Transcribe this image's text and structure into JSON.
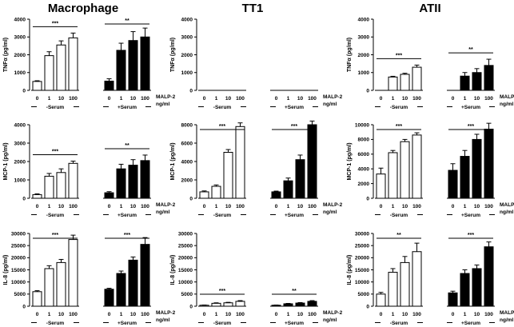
{
  "figure": {
    "columns": [
      "Macrophage",
      "TT1",
      "ATII"
    ],
    "stimulus_label": "MALP-2",
    "unit_label": "ng/ml",
    "group_labels": [
      "-Serum",
      "+Serum"
    ]
  },
  "chart_data": [
    {
      "type": "bar",
      "column": "Macrophage",
      "row": 0,
      "ylabel": "TNFα (pg/ml)",
      "ylim": [
        0,
        4000
      ],
      "yticks": [
        "0",
        "1000",
        "2000",
        "3000",
        "4000"
      ],
      "categories": [
        "0",
        "1",
        "10",
        "100"
      ],
      "series": [
        {
          "name": "-Serum",
          "fill": "#ffffff",
          "values": [
            500,
            1950,
            2550,
            2950
          ],
          "errors": [
            40,
            220,
            230,
            270
          ]
        },
        {
          "name": "+Serum",
          "fill": "#000000",
          "values": [
            520,
            2250,
            2800,
            3000
          ],
          "errors": [
            130,
            400,
            500,
            500
          ]
        }
      ],
      "annotations": [
        {
          "group": 0,
          "text": "***"
        },
        {
          "group": 1,
          "text": "**"
        }
      ]
    },
    {
      "type": "bar",
      "column": "Macrophage",
      "row": 1,
      "ylabel": "MCP-1 (pg/ml)",
      "ylim": [
        0,
        4000
      ],
      "yticks": [
        "0",
        "1000",
        "2000",
        "3000",
        "4000"
      ],
      "categories": [
        "0",
        "1",
        "10",
        "100"
      ],
      "series": [
        {
          "name": "-Serum",
          "fill": "#ffffff",
          "values": [
            200,
            1200,
            1400,
            1900
          ],
          "errors": [
            40,
            150,
            200,
            120
          ]
        },
        {
          "name": "+Serum",
          "fill": "#000000",
          "values": [
            300,
            1600,
            1800,
            2050
          ],
          "errors": [
            60,
            250,
            300,
            300
          ]
        }
      ],
      "annotations": [
        {
          "group": 0,
          "text": "***"
        },
        {
          "group": 1,
          "text": "**"
        }
      ]
    },
    {
      "type": "bar",
      "column": "Macrophage",
      "row": 2,
      "ylabel": "IL-8 (pg/ml)",
      "ylim": [
        0,
        30000
      ],
      "yticks": [
        "0",
        "5000",
        "10000",
        "15000",
        "20000",
        "25000",
        "30000"
      ],
      "categories": [
        "0",
        "1",
        "10",
        "100"
      ],
      "series": [
        {
          "name": "-Serum",
          "fill": "#ffffff",
          "values": [
            6000,
            15500,
            18000,
            27500
          ],
          "errors": [
            400,
            1200,
            1300,
            1800
          ]
        },
        {
          "name": "+Serum",
          "fill": "#000000",
          "values": [
            7000,
            13500,
            19000,
            25500
          ],
          "errors": [
            400,
            1000,
            1300,
            2800
          ]
        }
      ],
      "annotations": [
        {
          "group": 0,
          "text": "***"
        },
        {
          "group": 1,
          "text": "***"
        }
      ]
    },
    {
      "type": "bar",
      "column": "TT1",
      "row": 0,
      "ylabel": "TNFα (pg/ml)",
      "ylim": [
        0,
        4000
      ],
      "yticks": [
        "0",
        "1000",
        "2000",
        "3000",
        "4000"
      ],
      "categories": [
        "0",
        "1",
        "10",
        "100"
      ],
      "series": [
        {
          "name": "-Serum",
          "fill": "#ffffff",
          "values": [
            0,
            0,
            0,
            0
          ],
          "errors": [
            0,
            0,
            0,
            0
          ]
        },
        {
          "name": "+Serum",
          "fill": "#000000",
          "values": [
            0,
            0,
            0,
            0
          ],
          "errors": [
            0,
            0,
            0,
            0
          ]
        }
      ],
      "annotations": []
    },
    {
      "type": "bar",
      "column": "TT1",
      "row": 1,
      "ylabel": "MCP-1 (pg/ml)",
      "ylim": [
        0,
        8000
      ],
      "yticks": [
        "0",
        "2000",
        "4000",
        "6000",
        "8000"
      ],
      "categories": [
        "0",
        "1",
        "10",
        "100"
      ],
      "series": [
        {
          "name": "-Serum",
          "fill": "#ffffff",
          "values": [
            700,
            1300,
            5000,
            7800
          ],
          "errors": [
            100,
            150,
            300,
            400
          ]
        },
        {
          "name": "+Serum",
          "fill": "#000000",
          "values": [
            700,
            1900,
            4200,
            8000
          ],
          "errors": [
            80,
            300,
            500,
            400
          ]
        }
      ],
      "annotations": [
        {
          "group": 0,
          "text": "***"
        },
        {
          "group": 1,
          "text": "***"
        }
      ]
    },
    {
      "type": "bar",
      "column": "TT1",
      "row": 2,
      "ylabel": "IL-8 (pg/ml)",
      "ylim": [
        0,
        30000
      ],
      "yticks": [
        "0",
        "5000",
        "10000",
        "15000",
        "20000",
        "25000",
        "30000"
      ],
      "categories": [
        "0",
        "1",
        "10",
        "100"
      ],
      "series": [
        {
          "name": "-Serum",
          "fill": "#ffffff",
          "values": [
            400,
            1200,
            1400,
            2000
          ],
          "errors": [
            100,
            200,
            200,
            300
          ]
        },
        {
          "name": "+Serum",
          "fill": "#000000",
          "values": [
            400,
            1000,
            1300,
            2000
          ],
          "errors": [
            100,
            150,
            200,
            300
          ]
        }
      ],
      "annotations": [
        {
          "group": 0,
          "text": "***"
        },
        {
          "group": 1,
          "text": "**"
        }
      ]
    },
    {
      "type": "bar",
      "column": "ATII",
      "row": 0,
      "ylabel": "TNFα (pg/ml)",
      "ylim": [
        0,
        4000
      ],
      "yticks": [
        "0",
        "1000",
        "2000",
        "3000",
        "4000"
      ],
      "categories": [
        "0",
        "1",
        "10",
        "100"
      ],
      "series": [
        {
          "name": "-Serum",
          "fill": "#ffffff",
          "values": [
            0,
            750,
            900,
            1300
          ],
          "errors": [
            0,
            40,
            60,
            120
          ]
        },
        {
          "name": "+Serum",
          "fill": "#000000",
          "values": [
            0,
            800,
            1000,
            1400
          ],
          "errors": [
            0,
            200,
            220,
            350
          ]
        }
      ],
      "annotations": [
        {
          "group": 0,
          "text": "***"
        },
        {
          "group": 1,
          "text": "**"
        }
      ]
    },
    {
      "type": "bar",
      "column": "ATII",
      "row": 1,
      "ylabel": "MCP-1 (pg/ml)",
      "ylim": [
        0,
        10000
      ],
      "yticks": [
        "0",
        "2000",
        "4000",
        "6000",
        "8000",
        "10000"
      ],
      "categories": [
        "0",
        "1",
        "10",
        "100"
      ],
      "series": [
        {
          "name": "-Serum",
          "fill": "#ffffff",
          "values": [
            3300,
            6200,
            7700,
            8600
          ],
          "errors": [
            800,
            300,
            300,
            300
          ]
        },
        {
          "name": "+Serum",
          "fill": "#000000",
          "values": [
            3800,
            5700,
            8000,
            9400
          ],
          "errors": [
            900,
            800,
            700,
            800
          ]
        }
      ],
      "annotations": [
        {
          "group": 0,
          "text": "***"
        },
        {
          "group": 1,
          "text": "***"
        }
      ]
    },
    {
      "type": "bar",
      "column": "ATII",
      "row": 2,
      "ylabel": "IL-8 (pg/ml)",
      "ylim": [
        0,
        30000
      ],
      "yticks": [
        "0",
        "5000",
        "10000",
        "15000",
        "20000",
        "25000",
        "30000"
      ],
      "categories": [
        "0",
        "1",
        "10",
        "100"
      ],
      "series": [
        {
          "name": "-Serum",
          "fill": "#ffffff",
          "values": [
            5000,
            14000,
            18000,
            22500
          ],
          "errors": [
            700,
            1500,
            2500,
            3500
          ]
        },
        {
          "name": "+Serum",
          "fill": "#000000",
          "values": [
            5500,
            13500,
            15500,
            24500
          ],
          "errors": [
            700,
            1500,
            1500,
            2000
          ]
        }
      ],
      "annotations": [
        {
          "group": 0,
          "text": "**"
        },
        {
          "group": 1,
          "text": "***"
        }
      ]
    }
  ]
}
